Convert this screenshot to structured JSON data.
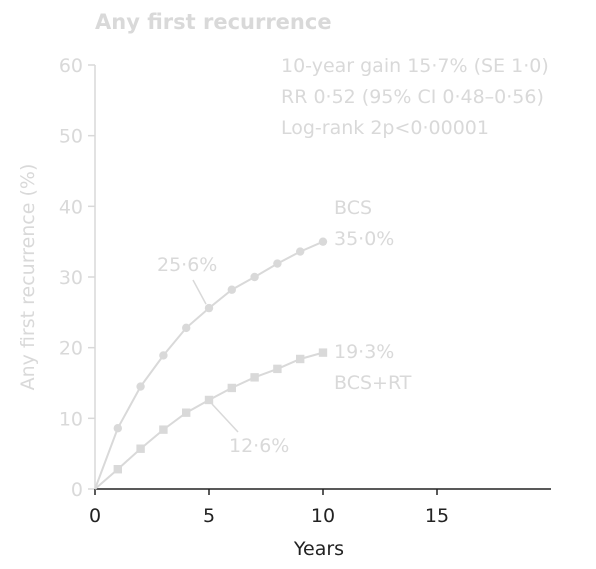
{
  "chart_data": {
    "type": "line",
    "title": "Any first recurrence",
    "xlabel": "Years",
    "ylabel": "Any first recurrence (%)",
    "xlim": [
      0,
      20
    ],
    "ylim": [
      0,
      60
    ],
    "xticks": [
      "0",
      "5",
      "10",
      "15"
    ],
    "yticks": [
      "0",
      "10",
      "20",
      "30",
      "40",
      "50",
      "60"
    ],
    "stats": [
      "10-year gain 15·7% (SE 1·0)",
      "RR 0·52 (95% CI 0·48–0·56)",
      "Log-rank 2p<0·00001"
    ],
    "series": [
      {
        "name": "BCS",
        "marker": "circle",
        "x": [
          0,
          1,
          2,
          3,
          4,
          5,
          6,
          7,
          8,
          9,
          10
        ],
        "values": [
          0,
          8.6,
          14.5,
          18.9,
          22.8,
          25.6,
          28.2,
          30.0,
          31.9,
          33.6,
          35.0
        ],
        "end_label": "35·0%",
        "mid_label": "25·6%"
      },
      {
        "name": "BCS+RT",
        "marker": "square",
        "x": [
          0,
          1,
          2,
          3,
          4,
          5,
          6,
          7,
          8,
          9,
          10
        ],
        "values": [
          0,
          2.8,
          5.7,
          8.4,
          10.8,
          12.6,
          14.3,
          15.8,
          17.0,
          18.4,
          19.3
        ],
        "end_label": "19·3%",
        "mid_label": "12·6%"
      }
    ],
    "colors": {
      "faint": "#d9d9d9",
      "axis": "#222222"
    }
  }
}
